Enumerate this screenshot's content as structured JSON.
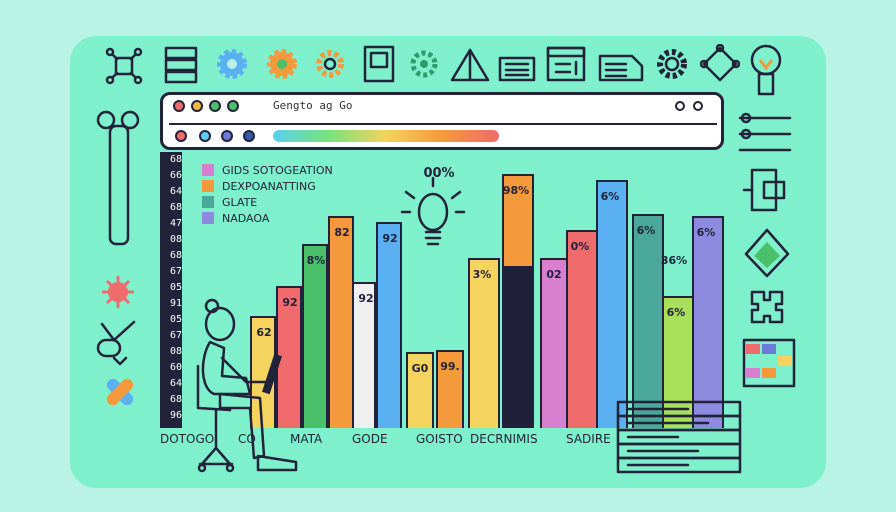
{
  "browser": {
    "title": "Gengto ag Go",
    "window_dots": [
      "#f06b6b",
      "#f4b740",
      "#4ac06a"
    ],
    "nav_dots": [
      "#f06b6b",
      "#5ad0f0",
      "#6c7bd8",
      "#2f5aa8"
    ]
  },
  "axis": {
    "ticks": [
      "68",
      "66",
      "64",
      "68",
      "47",
      "08",
      "68",
      "67",
      "05",
      "91",
      "05",
      "67",
      "08",
      "60",
      "64",
      "68",
      "96"
    ]
  },
  "legend": [
    {
      "label": "GIDS SOTOGEATION",
      "color": "#d97fd0"
    },
    {
      "label": "DEXPOANATTING",
      "color": "#f49a3c"
    },
    {
      "label": "GLATE",
      "color": "#4aa89a"
    },
    {
      "label": "NADAOA",
      "color": "#8d8be0"
    }
  ],
  "chart_data": {
    "type": "bar",
    "bar_labels": [
      "62",
      "92",
      "8%",
      "82",
      "92",
      "92",
      "G0",
      "99.",
      "00%",
      "3%",
      "98%",
      "02",
      "0%",
      "6%",
      "6%",
      "36%",
      "6%",
      "6%"
    ],
    "categories": [
      "DOTOGO",
      "CO",
      "MATA",
      "GODE",
      "GOISTO",
      "DECRNIMIS",
      "SADIRE"
    ]
  },
  "bars": [
    {
      "label": "62",
      "color": "#f4d35e"
    },
    {
      "label": "92",
      "color": "#f06b6b"
    },
    {
      "label": "8%",
      "color": "#4ac06a"
    },
    {
      "label": "82",
      "color": "#f49a3c"
    },
    {
      "label": "92",
      "color": "#f0f0f0"
    },
    {
      "label": "92",
      "color": "#5ab0f0"
    },
    {
      "label": "G0",
      "color": "#f4d35e"
    },
    {
      "label": "99.",
      "color": "#f49a3c"
    },
    {
      "label": "3%",
      "color": "#f4d35e"
    },
    {
      "label": "98%",
      "color": "#f49a3c"
    },
    {
      "label": "02",
      "color": "#d97fd0"
    },
    {
      "label": "0%",
      "color": "#f06b6b"
    },
    {
      "label": "6%",
      "color": "#5ab0f0"
    },
    {
      "label": "6%",
      "color": "#4aa89a"
    },
    {
      "label": "6%",
      "color": "#a8e05a"
    },
    {
      "label": "6%",
      "color": "#8d8be0"
    }
  ],
  "annotation": "00%",
  "extra_labels": {
    "right_top": "36%"
  },
  "categories": [
    "DOTOGO",
    "CO",
    "MATA",
    "GODE",
    "GOISTO",
    "DECRNIMIS",
    "SADIRE"
  ]
}
